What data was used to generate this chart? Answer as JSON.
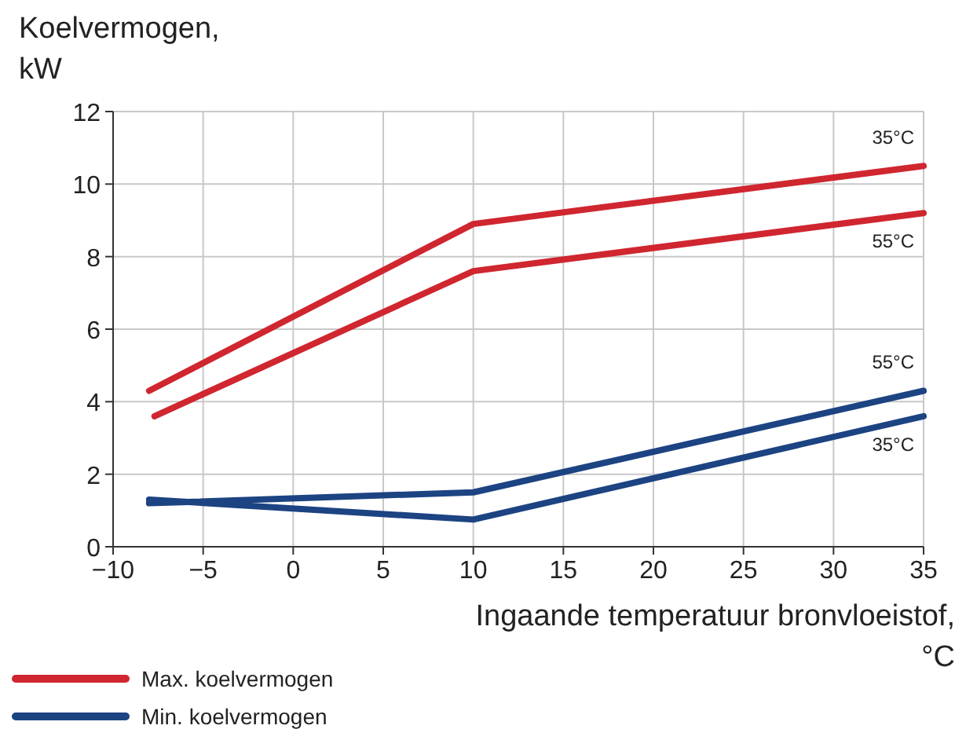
{
  "chart_data": {
    "type": "line",
    "xlabel": "Ingaande temperatuur bronvloeistof, °C",
    "ylabel": "Koelvermogen, kW",
    "xlim": [
      -10,
      35
    ],
    "xticks": [
      -10,
      -5,
      0,
      5,
      10,
      15,
      20,
      25,
      30,
      35
    ],
    "ylim": [
      0,
      12
    ],
    "yticks": [
      0,
      2,
      4,
      6,
      8,
      10,
      12
    ],
    "grid": true,
    "legend": "bottom left",
    "line_style": "solid",
    "marker": "none",
    "series": [
      {
        "name": "Max. koelvermogen",
        "color": "#d0262f",
        "x": [
          -8,
          10,
          35
        ],
        "values": [
          4.3,
          8.9,
          10.5
        ]
      },
      {
        "color": "#d0262f",
        "x": [
          -7.7,
          10,
          35
        ],
        "values": [
          3.6,
          7.6,
          9.2
        ]
      },
      {
        "name": "Min. koelvermogen",
        "color": "#1c4382",
        "x": [
          -8,
          10,
          35
        ],
        "values": [
          1.2,
          1.5,
          4.3
        ]
      },
      {
        "color": "#1c4382",
        "x": [
          -8,
          10,
          35
        ],
        "values": [
          1.3,
          0.75,
          3.6
        ]
      }
    ],
    "annotations": [
      "35°C",
      "55°C",
      "55°C",
      "35°C"
    ]
  }
}
